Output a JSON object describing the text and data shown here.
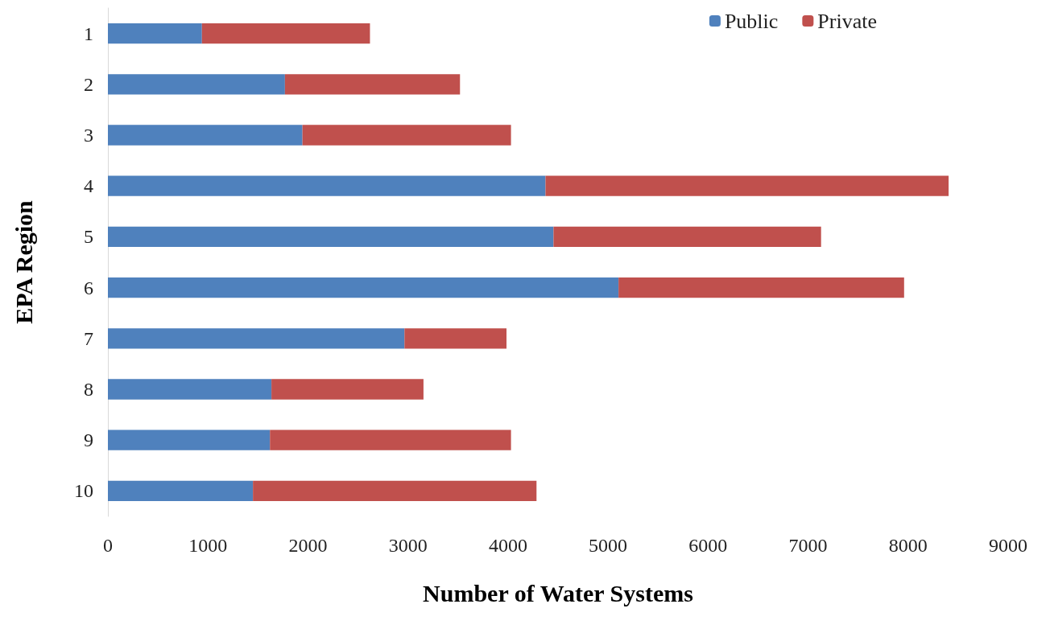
{
  "chart_data": {
    "type": "bar",
    "orientation": "horizontal",
    "stacked": true,
    "xlabel": "Number of Water Systems",
    "ylabel": "EPA Region",
    "categories": [
      "1",
      "2",
      "3",
      "4",
      "5",
      "6",
      "7",
      "8",
      "9",
      "10"
    ],
    "series": [
      {
        "name": "Public",
        "color": "#4f81bd",
        "values": [
          940,
          1770,
          1945,
          4375,
          4455,
          5105,
          2965,
          1635,
          1620,
          1450
        ]
      },
      {
        "name": "Private",
        "color": "#c0504d",
        "values": [
          1680,
          1750,
          2085,
          4030,
          2675,
          2855,
          1020,
          1520,
          2410,
          2835
        ]
      }
    ],
    "xlim": [
      0,
      9000
    ],
    "xticks": [
      0,
      1000,
      2000,
      3000,
      4000,
      5000,
      6000,
      7000,
      8000,
      9000
    ],
    "grid": false,
    "legend": "top right"
  }
}
